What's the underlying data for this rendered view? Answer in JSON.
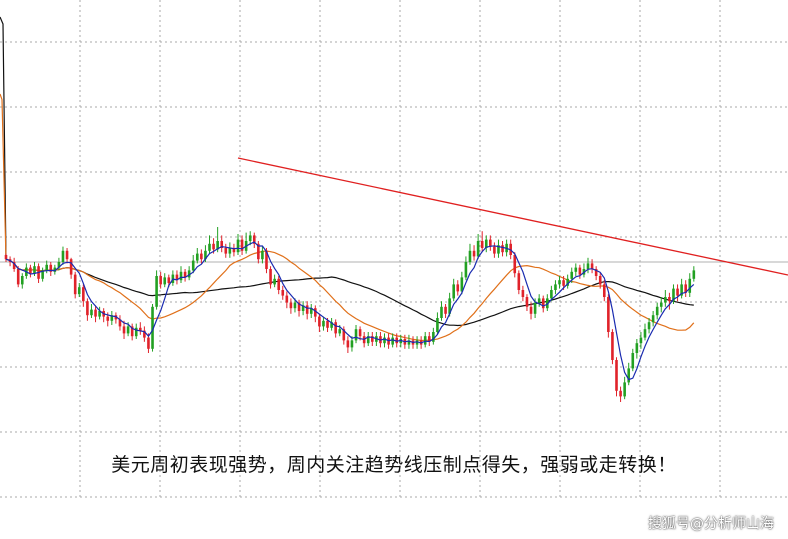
{
  "caption": "美元周初表现强势，周内关注趋势线压制点得失，强弱或走转换！",
  "watermark": "搜狐号@分析师山海",
  "colors": {
    "up": "#22a022",
    "down": "#e0222a",
    "ma_short": "#1a2bb0",
    "ma_mid": "#e0701a",
    "ma_long": "#111111",
    "trendline": "#e02020",
    "grid": "#aaaaaa",
    "price_line": "#b0b0b0"
  },
  "chart_data": {
    "type": "candlestick",
    "title": "",
    "xlabel": "",
    "ylabel": "",
    "grid": true,
    "candles": [
      [
        0,
        0.5,
        0.2,
        0.6,
        0.0
      ],
      [
        1,
        0.2,
        0.0,
        0.4,
        -0.3
      ],
      [
        2,
        0.0,
        -0.5,
        0.3,
        -0.7
      ],
      [
        3,
        -0.5,
        -1.6,
        -0.3,
        -1.8
      ],
      [
        4,
        -1.6,
        -1.0,
        -0.8,
        -1.9
      ],
      [
        5,
        -1.0,
        -0.4,
        -0.1,
        -1.2
      ],
      [
        6,
        -0.4,
        -0.8,
        -0.2,
        -1.1
      ],
      [
        7,
        -0.8,
        -0.3,
        0.0,
        -1.0
      ],
      [
        8,
        -0.3,
        -1.2,
        -0.1,
        -1.5
      ],
      [
        9,
        -1.2,
        -0.6,
        -0.4,
        -1.4
      ],
      [
        10,
        -0.6,
        -0.2,
        0.1,
        -0.8
      ],
      [
        11,
        -0.2,
        -0.7,
        0.0,
        -1.0
      ],
      [
        12,
        -0.7,
        -0.4,
        -0.2,
        -0.9
      ],
      [
        13,
        -0.4,
        0.0,
        0.3,
        -0.6
      ],
      [
        14,
        0.0,
        0.8,
        1.1,
        -0.2
      ],
      [
        15,
        0.8,
        0.2,
        1.0,
        -0.1
      ],
      [
        16,
        0.2,
        -0.9,
        0.3,
        -1.2
      ],
      [
        17,
        -0.9,
        -2.3,
        -0.7,
        -2.6
      ],
      [
        18,
        -2.3,
        -1.8,
        -1.5,
        -2.5
      ],
      [
        19,
        -1.8,
        -2.8,
        -1.6,
        -3.2
      ],
      [
        20,
        -2.8,
        -3.8,
        -2.6,
        -4.2
      ],
      [
        21,
        -3.8,
        -3.4,
        -3.0,
        -4.0
      ],
      [
        22,
        -3.4,
        -3.9,
        -3.1,
        -4.3
      ],
      [
        23,
        -3.9,
        -3.5,
        -3.2,
        -4.1
      ],
      [
        24,
        -3.5,
        -3.9,
        -3.3,
        -4.3
      ],
      [
        25,
        -3.9,
        -4.2,
        -3.6,
        -4.6
      ],
      [
        26,
        -4.2,
        -3.8,
        -3.5,
        -4.5
      ],
      [
        27,
        -3.8,
        -4.1,
        -3.6,
        -4.4
      ],
      [
        28,
        -4.1,
        -4.6,
        -3.8,
        -4.9
      ],
      [
        29,
        -4.6,
        -5.1,
        -4.2,
        -5.5
      ],
      [
        30,
        -5.1,
        -4.6,
        -4.3,
        -5.3
      ],
      [
        31,
        -4.6,
        -5.3,
        -4.4,
        -5.6
      ],
      [
        32,
        -5.3,
        -4.7,
        -4.4,
        -5.5
      ],
      [
        33,
        -4.7,
        -4.9,
        -4.3,
        -5.2
      ],
      [
        34,
        -4.9,
        -5.4,
        -4.6,
        -5.7
      ],
      [
        35,
        -5.4,
        -6.2,
        -5.1,
        -6.5
      ],
      [
        36,
        -6.2,
        -3.2,
        -3.0,
        -6.4
      ],
      [
        37,
        -3.2,
        -1.0,
        -0.6,
        -3.4
      ],
      [
        38,
        -1.0,
        -1.6,
        -0.7,
        -1.9
      ],
      [
        39,
        -1.6,
        -1.1,
        -0.8,
        -1.8
      ],
      [
        40,
        -1.1,
        -1.5,
        -0.9,
        -1.8
      ],
      [
        41,
        -1.5,
        -0.9,
        -0.6,
        -1.7
      ],
      [
        42,
        -0.9,
        -1.3,
        -0.6,
        -1.6
      ],
      [
        43,
        -1.3,
        -0.7,
        -0.3,
        -1.5
      ],
      [
        44,
        -0.7,
        -1.1,
        -0.5,
        -1.4
      ],
      [
        45,
        -1.1,
        -0.6,
        -0.3,
        -1.3
      ],
      [
        46,
        -0.6,
        0.1,
        0.5,
        -0.8
      ],
      [
        47,
        0.1,
        0.6,
        1.0,
        -0.1
      ],
      [
        48,
        0.6,
        0.2,
        0.9,
        -0.1
      ],
      [
        49,
        0.2,
        0.8,
        1.2,
        0.0
      ],
      [
        50,
        0.8,
        1.3,
        1.9,
        0.6
      ],
      [
        51,
        1.3,
        0.9,
        1.7,
        0.6
      ],
      [
        52,
        0.9,
        1.5,
        2.5,
        0.7
      ],
      [
        53,
        1.5,
        1.0,
        1.9,
        0.7
      ],
      [
        54,
        1.0,
        0.6,
        1.3,
        0.3
      ],
      [
        55,
        0.6,
        1.0,
        1.4,
        0.3
      ],
      [
        56,
        1.0,
        0.7,
        1.3,
        0.4
      ],
      [
        57,
        0.7,
        1.6,
        2.0,
        0.5
      ],
      [
        58,
        1.6,
        0.8,
        1.9,
        0.5
      ],
      [
        59,
        0.8,
        1.5,
        2.1,
        0.6
      ],
      [
        60,
        1.5,
        1.9,
        2.2,
        1.2
      ],
      [
        61,
        1.9,
        1.3,
        2.1,
        1.0
      ],
      [
        62,
        1.3,
        0.2,
        1.5,
        -0.1
      ],
      [
        63,
        0.2,
        0.8,
        1.1,
        -0.1
      ],
      [
        64,
        0.8,
        -0.5,
        1.0,
        -0.8
      ],
      [
        65,
        -0.5,
        -1.6,
        -0.3,
        -1.9
      ],
      [
        66,
        -1.6,
        -1.2,
        -0.9,
        -1.8
      ],
      [
        67,
        -1.2,
        -2.0,
        -1.0,
        -2.3
      ],
      [
        68,
        -2.0,
        -2.4,
        -1.7,
        -2.7
      ],
      [
        69,
        -2.4,
        -2.9,
        -2.1,
        -3.3
      ],
      [
        70,
        -2.9,
        -3.3,
        -2.6,
        -3.7
      ],
      [
        71,
        -3.3,
        -2.9,
        -2.6,
        -3.6
      ],
      [
        72,
        -2.9,
        -3.5,
        -2.7,
        -3.9
      ],
      [
        73,
        -3.5,
        -3.1,
        -2.8,
        -3.8
      ],
      [
        74,
        -3.1,
        -3.7,
        -2.8,
        -4.1
      ],
      [
        75,
        -3.7,
        -3.3,
        -3.0,
        -4.0
      ],
      [
        76,
        -3.3,
        -3.9,
        -3.1,
        -4.3
      ],
      [
        77,
        -3.9,
        -4.6,
        -3.7,
        -5.0
      ],
      [
        78,
        -4.6,
        -4.2,
        -3.9,
        -4.9
      ],
      [
        79,
        -4.2,
        -4.7,
        -4.0,
        -5.0
      ],
      [
        80,
        -4.7,
        -4.3,
        -4.0,
        -4.9
      ],
      [
        81,
        -4.3,
        -5.1,
        -4.1,
        -5.4
      ],
      [
        82,
        -5.1,
        -4.8,
        -4.5,
        -5.3
      ],
      [
        83,
        -4.8,
        -5.6,
        -4.6,
        -5.9
      ],
      [
        84,
        -5.6,
        -6.1,
        -5.3,
        -6.5
      ],
      [
        85,
        -6.1,
        -5.6,
        -5.3,
        -6.4
      ],
      [
        86,
        -5.6,
        -4.8,
        -4.5,
        -5.8
      ],
      [
        87,
        -4.8,
        -5.3,
        -4.6,
        -5.6
      ],
      [
        88,
        -5.3,
        -5.8,
        -5.0,
        -6.1
      ],
      [
        89,
        -5.8,
        -5.3,
        -5.0,
        -6.0
      ],
      [
        90,
        -5.3,
        -5.7,
        -5.0,
        -6.0
      ],
      [
        91,
        -5.7,
        -5.3,
        -5.0,
        -6.0
      ],
      [
        92,
        -5.3,
        -5.8,
        -5.0,
        -6.1
      ],
      [
        93,
        -5.8,
        -5.4,
        -5.1,
        -6.1
      ],
      [
        94,
        -5.4,
        -5.9,
        -5.1,
        -6.2
      ],
      [
        95,
        -5.9,
        -5.4,
        -5.1,
        -6.1
      ],
      [
        96,
        -5.4,
        -5.8,
        -5.1,
        -6.1
      ],
      [
        97,
        -5.8,
        -5.5,
        -5.2,
        -6.1
      ],
      [
        98,
        -5.5,
        -5.9,
        -5.2,
        -6.2
      ],
      [
        99,
        -5.9,
        -5.6,
        -5.2,
        -6.2
      ],
      [
        100,
        -5.6,
        -5.9,
        -5.3,
        -6.2
      ],
      [
        101,
        -5.9,
        -5.6,
        -5.3,
        -6.2
      ],
      [
        102,
        -5.6,
        -5.9,
        -5.3,
        -6.2
      ],
      [
        103,
        -5.9,
        -5.3,
        -5.0,
        -6.1
      ],
      [
        104,
        -5.3,
        -5.7,
        -5.0,
        -6.0
      ],
      [
        105,
        -5.7,
        -5.0,
        -4.7,
        -5.9
      ],
      [
        106,
        -5.0,
        -4.0,
        -3.6,
        -5.2
      ],
      [
        107,
        -4.0,
        -3.2,
        -2.8,
        -4.2
      ],
      [
        108,
        -3.2,
        -3.7,
        -3.0,
        -4.0
      ],
      [
        109,
        -3.7,
        -2.6,
        -2.2,
        -3.9
      ],
      [
        110,
        -2.6,
        -1.6,
        -1.2,
        -2.8
      ],
      [
        111,
        -1.6,
        -2.1,
        -1.3,
        -2.4
      ],
      [
        112,
        -2.1,
        -1.1,
        -0.7,
        -2.3
      ],
      [
        113,
        -1.1,
        0.0,
        0.4,
        -1.3
      ],
      [
        114,
        0.0,
        0.8,
        1.3,
        -0.2
      ],
      [
        115,
        0.8,
        0.4,
        1.2,
        0.1
      ],
      [
        116,
        0.4,
        1.5,
        2.0,
        0.2
      ],
      [
        117,
        1.5,
        1.0,
        2.2,
        0.7
      ],
      [
        118,
        1.0,
        1.6,
        1.9,
        0.7
      ],
      [
        119,
        1.6,
        1.1,
        1.9,
        0.8
      ],
      [
        120,
        1.1,
        0.6,
        1.4,
        0.3
      ],
      [
        121,
        0.6,
        1.2,
        1.6,
        0.3
      ],
      [
        122,
        1.2,
        0.7,
        1.5,
        0.4
      ],
      [
        123,
        0.7,
        1.3,
        1.6,
        0.4
      ],
      [
        124,
        1.3,
        0.5,
        1.6,
        0.2
      ],
      [
        125,
        0.5,
        -0.8,
        0.7,
        -1.1
      ],
      [
        126,
        -0.8,
        -2.0,
        -0.6,
        -2.3
      ],
      [
        127,
        -2.0,
        -2.5,
        -1.7,
        -2.8
      ],
      [
        128,
        -2.5,
        -3.2,
        -2.3,
        -3.5
      ],
      [
        129,
        -3.2,
        -3.7,
        -2.9,
        -4.1
      ],
      [
        130,
        -3.7,
        -2.9,
        -2.6,
        -4.0
      ],
      [
        131,
        -2.9,
        -2.6,
        -2.3,
        -3.2
      ],
      [
        132,
        -2.6,
        -3.3,
        -2.4,
        -3.6
      ],
      [
        133,
        -3.3,
        -2.6,
        -2.3,
        -3.5
      ],
      [
        134,
        -2.6,
        -2.0,
        -1.7,
        -2.8
      ],
      [
        135,
        -2.0,
        -1.6,
        -1.3,
        -2.3
      ],
      [
        136,
        -1.6,
        -1.3,
        -1.0,
        -1.9
      ],
      [
        137,
        -1.3,
        -1.7,
        -1.0,
        -2.0
      ],
      [
        138,
        -1.7,
        -1.2,
        -0.9,
        -1.9
      ],
      [
        139,
        -1.2,
        -0.7,
        -0.4,
        -1.5
      ],
      [
        140,
        -0.7,
        -0.4,
        -0.1,
        -1.0
      ],
      [
        141,
        -0.4,
        -0.9,
        -0.2,
        -1.2
      ],
      [
        142,
        -0.9,
        -0.5,
        -0.1,
        -1.1
      ],
      [
        143,
        -0.5,
        -0.1,
        0.3,
        -0.8
      ],
      [
        144,
        -0.1,
        -0.5,
        0.2,
        -0.8
      ],
      [
        145,
        -0.5,
        -1.0,
        -0.3,
        -1.3
      ],
      [
        146,
        -1.0,
        -1.6,
        -0.8,
        -1.9
      ],
      [
        147,
        -1.6,
        -2.5,
        -1.3,
        -2.8
      ],
      [
        148,
        -2.5,
        -5.0,
        -2.3,
        -5.4
      ],
      [
        149,
        -5.0,
        -7.0,
        -4.8,
        -7.3
      ],
      [
        150,
        -7.0,
        -9.2,
        -6.8,
        -9.6
      ],
      [
        151,
        -9.2,
        -9.6,
        -8.9,
        -10.0
      ],
      [
        152,
        -9.6,
        -8.6,
        -8.2,
        -9.8
      ],
      [
        153,
        -8.6,
        -7.6,
        -7.2,
        -8.8
      ],
      [
        154,
        -7.6,
        -6.5,
        -6.2,
        -7.8
      ],
      [
        155,
        -6.5,
        -5.8,
        -5.5,
        -6.9
      ],
      [
        156,
        -5.8,
        -5.4,
        -5.0,
        -6.2
      ],
      [
        157,
        -5.4,
        -4.8,
        -4.4,
        -5.6
      ],
      [
        158,
        -4.8,
        -4.3,
        -4.0,
        -5.1
      ],
      [
        159,
        -4.3,
        -3.8,
        -3.5,
        -4.6
      ],
      [
        160,
        -3.8,
        -3.2,
        -2.9,
        -4.1
      ],
      [
        161,
        -3.2,
        -2.9,
        -2.5,
        -3.6
      ],
      [
        162,
        -2.9,
        -2.5,
        -2.0,
        -3.2
      ],
      [
        163,
        -2.5,
        -2.8,
        -2.2,
        -3.4
      ],
      [
        164,
        -2.8,
        -1.9,
        -1.6,
        -3.0
      ],
      [
        165,
        -1.9,
        -2.4,
        -1.6,
        -2.8
      ],
      [
        166,
        -2.4,
        -1.6,
        -1.2,
        -2.6
      ],
      [
        167,
        -1.6,
        -2.2,
        -1.3,
        -2.5
      ],
      [
        168,
        -2.2,
        -1.2,
        -0.8,
        -2.5
      ],
      [
        169,
        -1.2,
        -0.6,
        -0.3,
        -1.4
      ]
    ]
  }
}
